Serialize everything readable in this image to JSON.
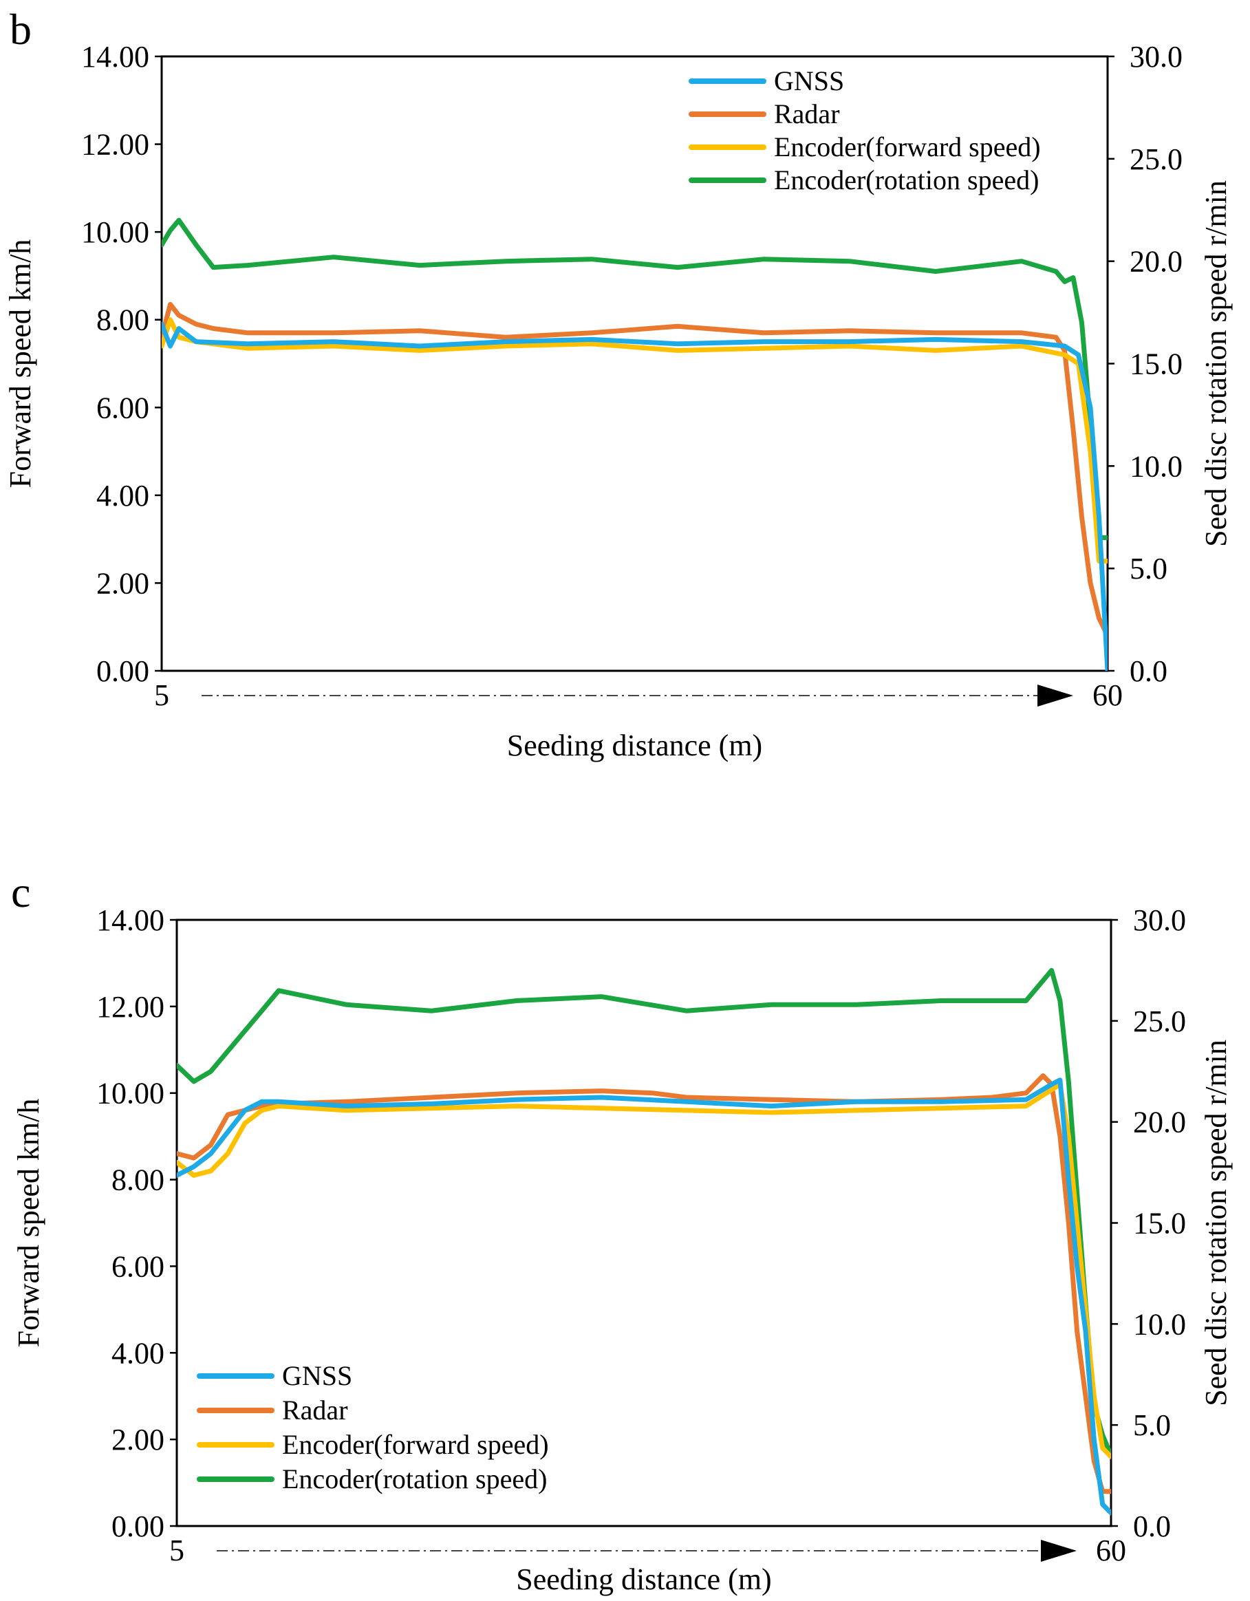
{
  "chart_data": [
    {
      "type": "line",
      "panel_label": "b",
      "xlabel": "Seeding distance (m)",
      "ylabel": "Forward speed km/h",
      "y2label": "Seed disc rotation speed r/min",
      "xlim": [
        5,
        60
      ],
      "ylim": [
        0,
        14
      ],
      "y2lim": [
        0,
        30
      ],
      "x_ticks": [
        "5",
        "60"
      ],
      "y_ticks": [
        "0.00",
        "2.00",
        "4.00",
        "6.00",
        "8.00",
        "10.00",
        "12.00",
        "14.00"
      ],
      "y2_ticks": [
        "0.0",
        "5.0",
        "10.0",
        "15.0",
        "20.0",
        "25.0",
        "30.0"
      ],
      "legend_position": "top-right",
      "series": [
        {
          "name": "GNSS",
          "axis": "left",
          "color": "#1EAAE6",
          "x": [
            5,
            5.5,
            6,
            7,
            10,
            15,
            20,
            25,
            30,
            35,
            40,
            45,
            50,
            55,
            57.5,
            58.3,
            59,
            59.5,
            60
          ],
          "y": [
            7.9,
            7.4,
            7.8,
            7.5,
            7.45,
            7.5,
            7.4,
            7.5,
            7.55,
            7.45,
            7.5,
            7.5,
            7.55,
            7.5,
            7.4,
            7.2,
            6.0,
            3.5,
            0.0
          ]
        },
        {
          "name": "Radar",
          "axis": "left",
          "color": "#E8792F",
          "x": [
            5,
            5.5,
            6,
            7,
            8,
            10,
            15,
            20,
            25,
            30,
            35,
            40,
            45,
            50,
            55,
            57,
            57.5,
            58,
            58.5,
            59,
            59.5,
            60
          ],
          "y": [
            7.6,
            8.35,
            8.1,
            7.9,
            7.8,
            7.7,
            7.7,
            7.75,
            7.6,
            7.7,
            7.85,
            7.7,
            7.75,
            7.7,
            7.7,
            7.6,
            7.3,
            5.5,
            3.5,
            2.0,
            1.2,
            0.8
          ]
        },
        {
          "name": "Encoder(forward speed)",
          "axis": "left",
          "color": "#FFC000",
          "x": [
            5,
            5.5,
            6,
            7,
            10,
            15,
            20,
            25,
            30,
            35,
            40,
            45,
            50,
            55,
            57.5,
            58.3,
            59,
            59.5,
            60
          ],
          "y": [
            7.4,
            8.0,
            7.6,
            7.5,
            7.35,
            7.4,
            7.3,
            7.4,
            7.45,
            7.3,
            7.35,
            7.4,
            7.3,
            7.4,
            7.2,
            7.0,
            5.0,
            2.5,
            2.5
          ]
        },
        {
          "name": "Encoder(rotation speed)",
          "axis": "right",
          "color": "#1BA541",
          "x": [
            5,
            5.5,
            6,
            7,
            8,
            10,
            15,
            20,
            25,
            30,
            35,
            40,
            45,
            50,
            55,
            57,
            57.5,
            58,
            58.5,
            59,
            59.5,
            60
          ],
          "y": [
            20.8,
            21.5,
            22.0,
            20.8,
            19.7,
            19.8,
            20.2,
            19.8,
            20.0,
            20.1,
            19.7,
            20.1,
            20.0,
            19.5,
            20.0,
            19.5,
            19.0,
            19.2,
            17.0,
            12.0,
            6.5,
            6.5
          ]
        }
      ]
    },
    {
      "type": "line",
      "panel_label": "c",
      "xlabel": "Seeding distance (m)",
      "ylabel": "Forward speed km/h",
      "y2label": "Seed disc rotation speed r/min",
      "xlim": [
        5,
        60
      ],
      "ylim": [
        0,
        14
      ],
      "y2lim": [
        0,
        30
      ],
      "x_ticks": [
        "5",
        "60"
      ],
      "y_ticks": [
        "0.00",
        "2.00",
        "4.00",
        "6.00",
        "8.00",
        "10.00",
        "12.00",
        "14.00"
      ],
      "y2_ticks": [
        "0.0",
        "5.0",
        "10.0",
        "15.0",
        "20.0",
        "25.0",
        "30.0"
      ],
      "legend_position": "bottom-left",
      "series": [
        {
          "name": "GNSS",
          "axis": "left",
          "color": "#1EAAE6",
          "x": [
            5,
            6,
            7,
            8,
            9,
            10,
            11,
            15,
            20,
            25,
            30,
            35,
            40,
            45,
            50,
            55,
            56.5,
            57,
            57.5,
            58,
            58.5,
            59,
            59.5,
            60
          ],
          "y": [
            8.1,
            8.3,
            8.6,
            9.1,
            9.6,
            9.8,
            9.8,
            9.7,
            9.75,
            9.85,
            9.9,
            9.8,
            9.7,
            9.8,
            9.8,
            9.85,
            10.2,
            10.3,
            8.0,
            6.0,
            4.5,
            2.0,
            0.5,
            0.3
          ]
        },
        {
          "name": "Radar",
          "axis": "left",
          "color": "#E8792F",
          "x": [
            5,
            6,
            7,
            8,
            9,
            10,
            11,
            15,
            20,
            25,
            30,
            33,
            35,
            40,
            45,
            50,
            53,
            55,
            56,
            56.5,
            57,
            57.5,
            58,
            58.5,
            59,
            59.5,
            60
          ],
          "y": [
            8.6,
            8.5,
            8.8,
            9.5,
            9.6,
            9.7,
            9.75,
            9.8,
            9.9,
            10.0,
            10.05,
            10.0,
            9.9,
            9.85,
            9.8,
            9.85,
            9.9,
            10.0,
            10.4,
            10.2,
            9.0,
            7.0,
            4.5,
            3.0,
            1.5,
            0.8,
            0.8
          ]
        },
        {
          "name": "Encoder(forward speed)",
          "axis": "left",
          "color": "#FFC000",
          "x": [
            5,
            6,
            7,
            8,
            9,
            10,
            11,
            15,
            20,
            25,
            30,
            35,
            40,
            45,
            50,
            55,
            57,
            57.5,
            58,
            58.5,
            59,
            59.5,
            60
          ],
          "y": [
            8.4,
            8.1,
            8.2,
            8.6,
            9.3,
            9.6,
            9.7,
            9.6,
            9.65,
            9.7,
            9.65,
            9.6,
            9.55,
            9.6,
            9.65,
            9.7,
            10.2,
            9.0,
            7.0,
            5.0,
            3.0,
            1.8,
            1.6
          ]
        },
        {
          "name": "Encoder(rotation speed)",
          "axis": "right",
          "color": "#1BA541",
          "x": [
            5,
            6,
            7,
            8,
            9,
            10,
            11,
            15,
            20,
            25,
            30,
            35,
            40,
            45,
            50,
            55,
            56.5,
            57,
            57.5,
            58,
            58.5,
            59,
            59.5,
            60
          ],
          "y": [
            22.8,
            22.0,
            22.5,
            23.5,
            24.5,
            25.5,
            26.5,
            25.8,
            25.5,
            26.0,
            26.2,
            25.5,
            25.8,
            25.8,
            26.0,
            26.0,
            27.5,
            26.0,
            22.0,
            16.5,
            11.0,
            6.0,
            4.5,
            3.5
          ]
        }
      ]
    }
  ]
}
